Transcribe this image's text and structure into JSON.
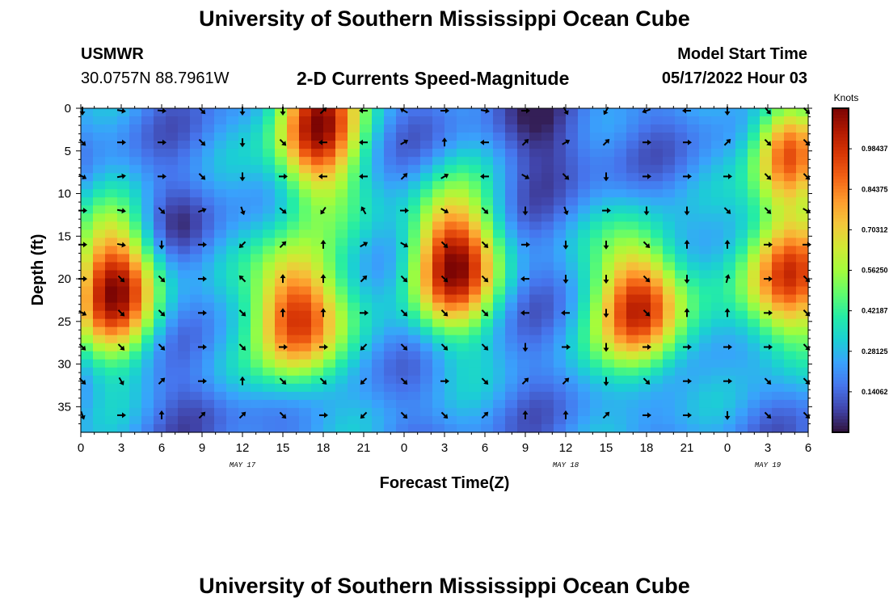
{
  "header": {
    "title": "University of Southern Mississippi Ocean Cube",
    "station": "USMWR",
    "coords": "30.0757N  88.7961W",
    "subtitle": "2-D Currents Speed-Magnitude",
    "model_start_label": "Model Start Time",
    "model_start_value": "05/17/2022 Hour 03"
  },
  "footer": {
    "title": "University of Southern Mississippi Ocean Cube"
  },
  "chart_data": {
    "type": "heatmap",
    "title": "2-D Currents Speed-Magnitude",
    "xlabel": "Forecast Time(Z)",
    "ylabel": "Depth (ft)",
    "x_tick_labels": [
      "0",
      "3",
      "6",
      "9",
      "12",
      "15",
      "18",
      "21",
      "0",
      "3",
      "6",
      "9",
      "12",
      "15",
      "18",
      "21",
      "0",
      "3",
      "6"
    ],
    "x_range_hours": [
      0,
      54
    ],
    "month_labels": [
      {
        "label": "MAY 17",
        "at_hour": 12
      },
      {
        "label": "MAY 18",
        "at_hour": 36
      },
      {
        "label": "MAY 19",
        "at_hour": 51
      }
    ],
    "y_tick_labels": [
      "0",
      "5",
      "10",
      "15",
      "20",
      "25",
      "30",
      "35"
    ],
    "y_range_ft": [
      0,
      38
    ],
    "colorbar": {
      "title": "Knots",
      "tick_labels": [
        "0.98437",
        "0.84375",
        "0.70312",
        "0.56250",
        "0.42187",
        "0.28125",
        "0.14062"
      ],
      "range": [
        0,
        1.125
      ],
      "colors": [
        "#30123b",
        "#4145ab",
        "#4675ed",
        "#39a2fc",
        "#1bcfd4",
        "#24eca6",
        "#61fc6c",
        "#a4fc3b",
        "#d1e834",
        "#f3c63a",
        "#fe9b2d",
        "#f36315",
        "#d93806",
        "#b11901",
        "#7a0403"
      ]
    },
    "blobs_speed_knots": [
      {
        "name": "A",
        "t_hours": 2.5,
        "depth_ft": 21,
        "peak": 1.05
      },
      {
        "name": "B",
        "t_hours": 17.5,
        "depth_ft": 2,
        "peak": 1.1
      },
      {
        "name": "C",
        "t_hours": 16,
        "depth_ft": 24,
        "peak": 1.05
      },
      {
        "name": "D",
        "t_hours": 27.5,
        "depth_ft": 18,
        "peak": 1.1
      },
      {
        "name": "E",
        "t_hours": 41.5,
        "depth_ft": 23,
        "peak": 1.05
      },
      {
        "name": "F",
        "t_hours": 52.5,
        "depth_ft": 20,
        "peak": 1.0
      },
      {
        "name": "G",
        "t_hours": 52.5,
        "depth_ft": 5,
        "peak": 0.9
      }
    ],
    "vector_grid": {
      "t_hours_step": 3,
      "depths_ft": [
        0,
        4,
        8,
        12,
        16,
        20,
        24,
        28,
        32,
        36
      ],
      "directions_deg": [
        [
          180,
          100,
          95,
          135,
          180,
          180,
          45,
          270,
          300,
          90,
          100,
          90,
          150,
          210,
          250,
          270,
          180,
          140,
          135
        ],
        [
          135,
          90,
          90,
          135,
          180,
          135,
          270,
          270,
          60,
          0,
          270,
          45,
          60,
          45,
          90,
          90,
          45,
          135,
          135
        ],
        [
          120,
          80,
          90,
          135,
          180,
          90,
          270,
          270,
          45,
          60,
          270,
          120,
          135,
          180,
          90,
          90,
          90,
          135,
          135
        ],
        [
          90,
          100,
          135,
          70,
          160,
          130,
          215,
          330,
          90,
          120,
          135,
          180,
          160,
          90,
          180,
          180,
          135,
          135,
          120
        ],
        [
          90,
          100,
          180,
          90,
          225,
          45,
          0,
          60,
          120,
          135,
          135,
          90,
          180,
          180,
          135,
          0,
          0,
          90,
          90
        ],
        [
          90,
          135,
          135,
          90,
          315,
          0,
          0,
          45,
          135,
          135,
          135,
          270,
          180,
          180,
          135,
          180,
          15,
          90,
          135
        ],
        [
          120,
          135,
          135,
          90,
          135,
          0,
          0,
          90,
          135,
          135,
          135,
          270,
          270,
          180,
          135,
          0,
          0,
          90,
          135
        ],
        [
          135,
          135,
          135,
          90,
          135,
          90,
          90,
          225,
          135,
          135,
          135,
          180,
          90,
          180,
          90,
          90,
          90,
          90,
          135
        ],
        [
          135,
          150,
          45,
          90,
          0,
          135,
          135,
          225,
          135,
          90,
          135,
          45,
          45,
          180,
          135,
          90,
          90,
          135,
          135
        ],
        [
          160,
          90,
          0,
          45,
          45,
          135,
          90,
          225,
          135,
          135,
          45,
          0,
          0,
          45,
          90,
          90,
          180,
          135,
          135
        ]
      ]
    }
  }
}
